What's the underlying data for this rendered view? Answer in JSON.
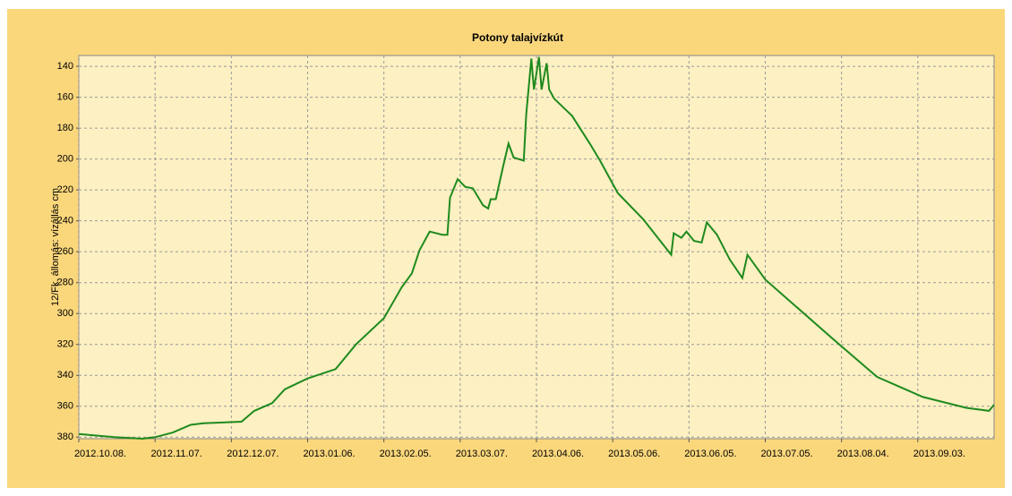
{
  "chart_data": {
    "type": "line",
    "title": "Potony talajvízkút",
    "y_label": "12/Fk. állomás: vízállás cm",
    "y_inverted": true,
    "ylim": [
      133,
      381
    ],
    "yticks": [
      140,
      160,
      180,
      200,
      220,
      240,
      260,
      280,
      300,
      320,
      340,
      360,
      380
    ],
    "xlim": [
      "2012-10-08",
      "2013-10-03"
    ],
    "xticks": [
      {
        "value": "2012-10-08",
        "label": "2012.10.08."
      },
      {
        "value": "2012-11-07",
        "label": "2012.11.07."
      },
      {
        "value": "2012-12-07",
        "label": "2012.12.07."
      },
      {
        "value": "2013-01-06",
        "label": "2013.01.06."
      },
      {
        "value": "2013-02-05",
        "label": "2013.02.05."
      },
      {
        "value": "2013-03-07",
        "label": "2013.03.07."
      },
      {
        "value": "2013-04-06",
        "label": "2013.04.06."
      },
      {
        "value": "2013-05-06",
        "label": "2013.05.06."
      },
      {
        "value": "2013-06-05",
        "label": "2013.06.05."
      },
      {
        "value": "2013-07-05",
        "label": "2013.07.05."
      },
      {
        "value": "2013-08-04",
        "label": "2013.08.04."
      },
      {
        "value": "2013-09-03",
        "label": "2013.09.03."
      }
    ],
    "grid": true,
    "x": [
      "2012-10-08",
      "2012-10-22",
      "2012-11-02",
      "2012-11-07",
      "2012-11-14",
      "2012-11-21",
      "2012-11-26",
      "2012-12-11",
      "2012-12-16",
      "2012-12-23",
      "2012-12-28",
      "2013-01-06",
      "2013-01-17",
      "2013-01-25",
      "2013-02-05",
      "2013-02-12",
      "2013-02-16",
      "2013-02-19",
      "2013-02-23",
      "2013-02-28",
      "2013-03-02",
      "2013-03-03",
      "2013-03-06",
      "2013-03-09",
      "2013-03-12",
      "2013-03-16",
      "2013-03-18",
      "2013-03-19",
      "2013-03-21",
      "2013-03-24",
      "2013-03-26",
      "2013-03-28",
      "2013-04-01",
      "2013-04-02",
      "2013-04-04",
      "2013-04-05",
      "2013-04-07",
      "2013-04-08",
      "2013-04-10",
      "2013-04-11",
      "2013-04-13",
      "2013-04-20",
      "2013-04-27",
      "2013-05-01",
      "2013-05-08",
      "2013-05-18",
      "2013-05-29",
      "2013-05-30",
      "2013-06-02",
      "2013-06-04",
      "2013-06-07",
      "2013-06-10",
      "2013-06-12",
      "2013-06-16",
      "2013-06-21",
      "2013-06-26",
      "2013-06-28",
      "2013-07-05",
      "2013-07-14",
      "2013-08-01",
      "2013-08-18",
      "2013-09-05",
      "2013-09-22",
      "2013-10-01",
      "2013-10-03"
    ],
    "series": [
      {
        "name": "vízállás",
        "color": "#1e8a1e",
        "values": [
          378,
          380,
          381,
          380,
          377,
          372,
          371,
          370,
          363,
          358,
          349,
          342,
          336,
          320,
          303,
          283,
          274,
          259,
          247,
          249,
          249,
          225,
          213,
          218,
          219,
          230,
          232,
          226,
          226,
          204,
          190,
          199,
          201,
          171,
          135,
          155,
          134,
          155,
          138,
          155,
          161,
          172,
          190,
          201,
          222,
          239,
          262,
          248,
          251,
          247,
          253,
          254,
          241,
          249,
          265,
          277,
          262,
          278,
          291,
          317,
          341,
          354,
          361,
          363,
          359
        ]
      }
    ]
  }
}
